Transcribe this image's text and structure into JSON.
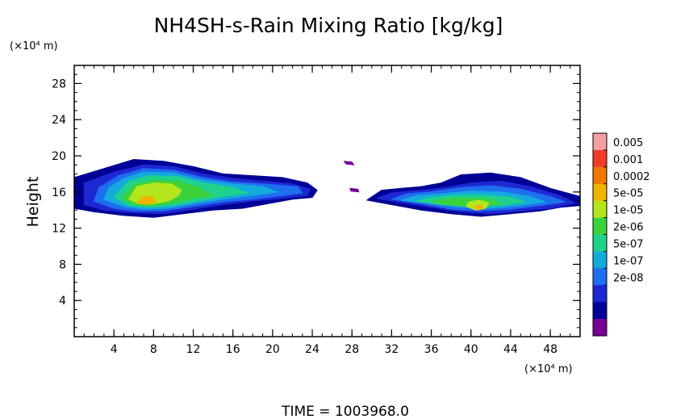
{
  "chart_data": {
    "type": "heatmap",
    "title": "NH4SH-s-Rain Mixing Ratio [kg/kg]",
    "ylabel": "Height",
    "y_unit": "(×10⁴ m)",
    "x_unit": "(×10⁴ m)",
    "xlim": [
      0,
      51
    ],
    "ylim": [
      0,
      30
    ],
    "x_ticks": [
      4,
      8,
      12,
      16,
      20,
      24,
      28,
      32,
      36,
      40,
      44,
      48
    ],
    "y_ticks": [
      4,
      8,
      12,
      16,
      20,
      24,
      28
    ],
    "colorbar": {
      "labels": [
        "0.005",
        "0.001",
        "0.0002",
        "5e-05",
        "1e-05",
        "2e-06",
        "5e-07",
        "1e-07",
        "2e-08"
      ],
      "colors": [
        "#f4a0a0",
        "#f03c28",
        "#f07800",
        "#f0b400",
        "#b4e61e",
        "#3cd23c",
        "#1ed28c",
        "#14aadc",
        "#1e6ef0",
        "#1e28d2",
        "#000096",
        "#780096"
      ]
    },
    "regions": [
      {
        "name": "left-cloud",
        "level": 1,
        "points": [
          [
            0,
            14.2
          ],
          [
            2,
            13.8
          ],
          [
            5,
            13.4
          ],
          [
            8,
            13.2
          ],
          [
            11,
            13.6
          ],
          [
            14,
            14.0
          ],
          [
            17,
            14.2
          ],
          [
            20,
            14.8
          ],
          [
            22,
            15.2
          ],
          [
            24,
            15.4
          ],
          [
            24.5,
            16.2
          ],
          [
            23.5,
            17.0
          ],
          [
            21,
            17.6
          ],
          [
            18,
            17.8
          ],
          [
            15,
            18.0
          ],
          [
            12,
            18.8
          ],
          [
            9,
            19.4
          ],
          [
            6,
            19.6
          ],
          [
            3,
            18.6
          ],
          [
            0,
            17.6
          ]
        ]
      },
      {
        "name": "left-cloud",
        "level": 2,
        "points": [
          [
            1,
            14.6
          ],
          [
            3,
            14.0
          ],
          [
            6,
            13.7
          ],
          [
            9,
            13.6
          ],
          [
            12,
            14.1
          ],
          [
            15,
            14.6
          ],
          [
            18,
            15.0
          ],
          [
            21,
            15.3
          ],
          [
            23.5,
            15.6
          ],
          [
            23.8,
            16.3
          ],
          [
            22,
            16.9
          ],
          [
            19,
            17.2
          ],
          [
            16,
            17.5
          ],
          [
            13,
            18.0
          ],
          [
            10,
            18.8
          ],
          [
            7,
            19.0
          ],
          [
            4,
            18.2
          ],
          [
            1,
            17.0
          ]
        ]
      },
      {
        "name": "left-cloud",
        "level": 3,
        "points": [
          [
            2,
            15.0
          ],
          [
            4,
            14.2
          ],
          [
            6,
            13.9
          ],
          [
            9,
            13.9
          ],
          [
            12,
            14.4
          ],
          [
            15,
            14.9
          ],
          [
            18,
            15.2
          ],
          [
            21,
            15.6
          ],
          [
            23,
            15.9
          ],
          [
            22.5,
            16.6
          ],
          [
            19,
            16.9
          ],
          [
            16,
            17.1
          ],
          [
            13,
            17.6
          ],
          [
            10,
            18.4
          ],
          [
            7,
            18.6
          ],
          [
            4.5,
            17.8
          ],
          [
            2.5,
            16.5
          ]
        ]
      },
      {
        "name": "left-cloud",
        "level": 4,
        "points": [
          [
            3,
            15.2
          ],
          [
            5,
            14.4
          ],
          [
            7,
            14.1
          ],
          [
            9.5,
            14.2
          ],
          [
            12,
            14.7
          ],
          [
            15,
            15.2
          ],
          [
            18,
            15.6
          ],
          [
            20.5,
            16.0
          ],
          [
            19,
            16.6
          ],
          [
            16,
            16.9
          ],
          [
            13,
            17.3
          ],
          [
            10,
            18.1
          ],
          [
            7,
            18.2
          ],
          [
            5,
            17.5
          ],
          [
            3.5,
            16.5
          ]
        ]
      },
      {
        "name": "left-cloud",
        "level": 5,
        "points": [
          [
            4,
            15.4
          ],
          [
            5.5,
            14.5
          ],
          [
            7.5,
            14.3
          ],
          [
            10,
            14.5
          ],
          [
            12.5,
            15.0
          ],
          [
            15,
            15.5
          ],
          [
            17.5,
            15.9
          ],
          [
            16,
            16.5
          ],
          [
            13,
            17.0
          ],
          [
            10.5,
            17.7
          ],
          [
            7.5,
            17.8
          ],
          [
            5.5,
            17.2
          ]
        ]
      },
      {
        "name": "left-cloud",
        "level": 6,
        "points": [
          [
            4.8,
            15.3
          ],
          [
            6,
            14.6
          ],
          [
            8,
            14.5
          ],
          [
            10,
            14.8
          ],
          [
            12,
            15.3
          ],
          [
            14,
            15.6
          ],
          [
            12.5,
            16.5
          ],
          [
            10.5,
            17.2
          ],
          [
            8,
            17.3
          ],
          [
            6,
            16.8
          ]
        ]
      },
      {
        "name": "left-cloud",
        "level": 7,
        "points": [
          [
            5.5,
            15.2
          ],
          [
            6.5,
            14.7
          ],
          [
            8,
            14.7
          ],
          [
            9.5,
            15.0
          ],
          [
            10.5,
            15.6
          ],
          [
            10.8,
            16.2
          ],
          [
            9.8,
            16.9
          ],
          [
            8,
            17.0
          ],
          [
            6.3,
            16.6
          ]
        ]
      },
      {
        "name": "left-cloud",
        "level": 8,
        "points": [
          [
            6.3,
            14.8
          ],
          [
            7.2,
            14.6
          ],
          [
            8.2,
            14.9
          ],
          [
            8,
            15.4
          ],
          [
            7,
            15.5
          ]
        ]
      },
      {
        "name": "right-cloud",
        "level": 1,
        "points": [
          [
            29.5,
            15.1
          ],
          [
            32,
            14.6
          ],
          [
            35,
            14.0
          ],
          [
            38,
            13.6
          ],
          [
            41,
            13.3
          ],
          [
            44,
            13.6
          ],
          [
            47,
            13.9
          ],
          [
            49,
            14.3
          ],
          [
            51,
            14.5
          ],
          [
            51,
            15.5
          ],
          [
            48,
            16.4
          ],
          [
            45,
            17.6
          ],
          [
            42,
            18.1
          ],
          [
            39,
            17.9
          ],
          [
            37,
            17.0
          ],
          [
            35,
            16.6
          ],
          [
            33,
            16.4
          ],
          [
            31,
            16.2
          ]
        ]
      },
      {
        "name": "right-cloud",
        "level": 2,
        "points": [
          [
            30.5,
            15.3
          ],
          [
            33,
            14.8
          ],
          [
            36,
            14.3
          ],
          [
            39,
            13.8
          ],
          [
            42,
            13.6
          ],
          [
            45,
            13.9
          ],
          [
            48,
            14.2
          ],
          [
            50.5,
            14.8
          ],
          [
            49,
            15.6
          ],
          [
            46,
            16.6
          ],
          [
            43,
            17.2
          ],
          [
            40,
            17.0
          ],
          [
            37.5,
            16.5
          ],
          [
            35,
            16.2
          ],
          [
            32,
            15.9
          ]
        ]
      },
      {
        "name": "right-cloud",
        "level": 3,
        "points": [
          [
            32,
            15.2
          ],
          [
            35,
            14.7
          ],
          [
            38,
            14.1
          ],
          [
            41,
            13.9
          ],
          [
            44,
            14.1
          ],
          [
            47,
            14.5
          ],
          [
            49.5,
            14.9
          ],
          [
            48,
            15.5
          ],
          [
            45,
            16.3
          ],
          [
            42,
            16.7
          ],
          [
            39,
            16.5
          ],
          [
            36,
            16.0
          ],
          [
            33.5,
            15.8
          ]
        ]
      },
      {
        "name": "right-cloud",
        "level": 4,
        "points": [
          [
            33,
            15.1
          ],
          [
            36,
            14.7
          ],
          [
            39,
            14.3
          ],
          [
            42,
            14.2
          ],
          [
            45,
            14.5
          ],
          [
            47.5,
            14.9
          ],
          [
            46,
            15.5
          ],
          [
            43,
            16.0
          ],
          [
            40,
            16.1
          ],
          [
            37,
            15.8
          ],
          [
            34.5,
            15.6
          ]
        ]
      },
      {
        "name": "right-cloud",
        "level": 5,
        "points": [
          [
            34.5,
            15.0
          ],
          [
            37,
            14.6
          ],
          [
            40,
            14.4
          ],
          [
            43,
            14.5
          ],
          [
            45.5,
            14.9
          ],
          [
            44,
            15.4
          ],
          [
            41,
            15.7
          ],
          [
            38,
            15.6
          ],
          [
            36,
            15.4
          ]
        ]
      },
      {
        "name": "right-cloud",
        "level": 6,
        "points": [
          [
            36,
            14.9
          ],
          [
            38.5,
            14.5
          ],
          [
            41,
            14.4
          ],
          [
            43,
            14.7
          ],
          [
            42,
            15.2
          ],
          [
            39.5,
            15.3
          ],
          [
            37.5,
            15.2
          ]
        ]
      },
      {
        "name": "right-cloud",
        "level": 7,
        "points": [
          [
            39.5,
            14.4
          ],
          [
            40.5,
            14.0
          ],
          [
            41.5,
            14.2
          ],
          [
            41.8,
            14.8
          ],
          [
            40.8,
            15.1
          ],
          [
            39.8,
            14.9
          ]
        ]
      },
      {
        "name": "right-cloud",
        "level": 8,
        "points": [
          [
            40.3,
            14.3
          ],
          [
            40.8,
            14.0
          ],
          [
            41.2,
            14.3
          ],
          [
            40.9,
            14.6
          ]
        ]
      },
      {
        "name": "fragment",
        "level": 0,
        "points": [
          [
            27.2,
            19.4
          ],
          [
            28.0,
            19.3
          ],
          [
            28.2,
            19.0
          ],
          [
            27.4,
            19.1
          ]
        ]
      },
      {
        "name": "fragment",
        "level": 0,
        "points": [
          [
            27.8,
            16.4
          ],
          [
            28.6,
            16.3
          ],
          [
            28.7,
            16.0
          ],
          [
            27.9,
            16.1
          ]
        ]
      }
    ],
    "annotation": "TIME  =  1003968.0"
  }
}
